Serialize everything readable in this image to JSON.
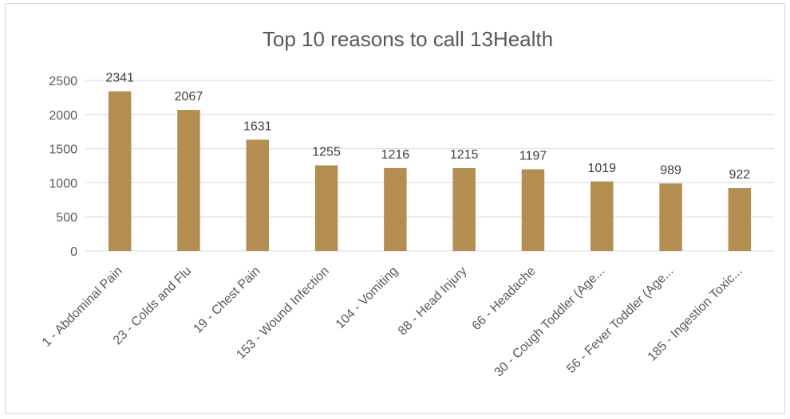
{
  "chart_data": {
    "type": "bar",
    "title": "Top 10 reasons to call 13Health",
    "xlabel": "",
    "ylabel": "",
    "categories": [
      "1 - Abdominal Pain",
      "23 - Colds and Flu",
      "19 - Chest Pain",
      "153 - Wound Infection",
      "104 - Vomiting",
      "88 - Head Injury",
      "66 - Headache",
      "30 - Cough Toddler (Age...",
      "56 - Fever Toddler (Age...",
      "185 - Ingestion Toxic..."
    ],
    "values": [
      2341,
      2067,
      1631,
      1255,
      1216,
      1215,
      1197,
      1019,
      989,
      922
    ],
    "ylim": [
      0,
      2500
    ],
    "yticks": [
      0,
      500,
      1000,
      1500,
      2000,
      2500
    ],
    "grid": true,
    "legend": "none",
    "bar_color": "#b38e50",
    "grid_color": "#d9d9d9"
  }
}
